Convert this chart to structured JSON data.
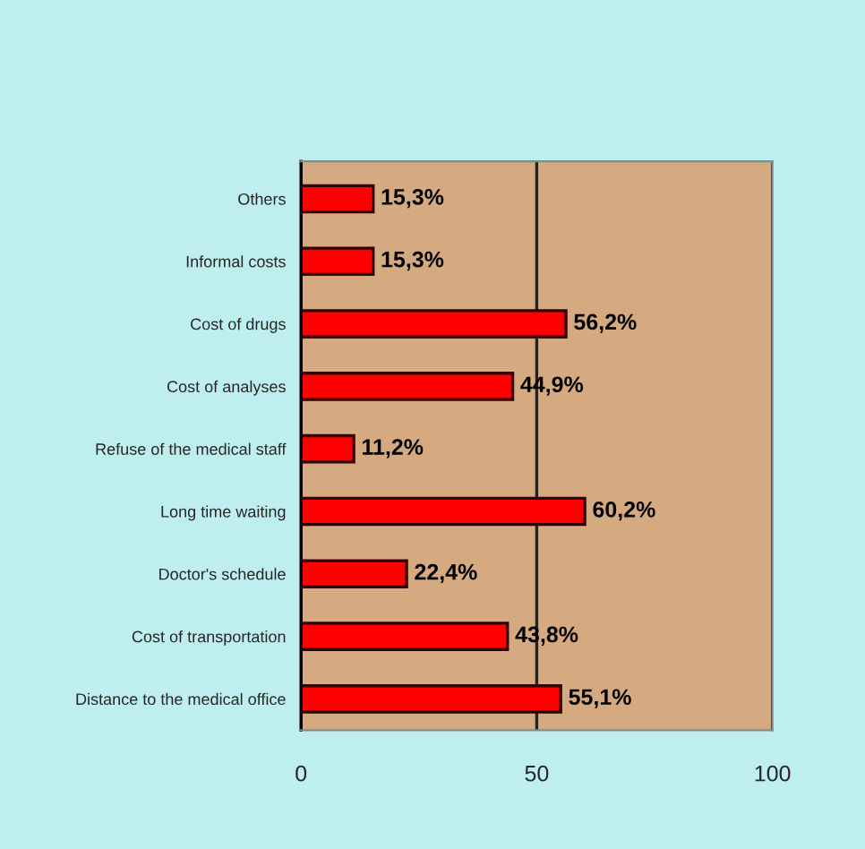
{
  "chart_data": {
    "type": "bar",
    "orientation": "horizontal",
    "categories": [
      "Others",
      "Informal costs",
      "Cost of drugs",
      "Cost of analyses",
      "Refuse of the medical staff",
      "Long time waiting",
      "Doctor's schedule",
      "Cost of transportation",
      "Distance to the medical office"
    ],
    "values": [
      15.3,
      15.3,
      56.2,
      44.9,
      11.2,
      60.2,
      22.4,
      43.8,
      55.1
    ],
    "value_labels": [
      "15,3%",
      "15,3%",
      "56,2%",
      "44,9%",
      "11,2%",
      "60,2%",
      "22,4%",
      "43,8%",
      "55,1%"
    ],
    "color": "#ff0000",
    "xlim": [
      0,
      100
    ],
    "xticks": [
      0,
      50,
      100
    ],
    "grid": "x"
  }
}
